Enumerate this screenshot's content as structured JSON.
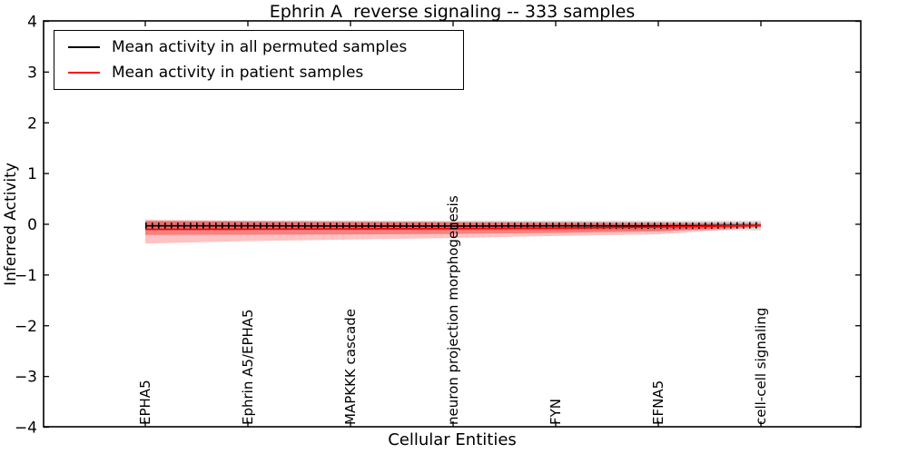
{
  "figure": {
    "title": "Ephrin A  reverse signaling -- 333 samples",
    "xlabel": "Cellular Entities",
    "ylabel": "Inferred Activity"
  },
  "chart_data": {
    "type": "line",
    "title": "Ephrin A  reverse signaling -- 333 samples",
    "xlabel": "Cellular Entities",
    "ylabel": "Inferred Activity",
    "ylim": [
      -4,
      4
    ],
    "yticks": [
      4,
      3,
      2,
      1,
      0,
      -1,
      -2,
      -3,
      -4
    ],
    "grid": false,
    "legend_position": "upper left",
    "categories": [
      "EPHA5",
      "Ephrin A5/EPHA5",
      "MAPKKK cascade",
      "neuron projection morphogenesis",
      "FYN",
      "EFNA5",
      "cell-cell signaling"
    ],
    "series": [
      {
        "name": "Mean activity in all permuted samples",
        "color": "#000000",
        "marker": "vertical-tick",
        "values": [
          -0.03,
          -0.03,
          -0.035,
          -0.035,
          -0.03,
          -0.03,
          -0.02
        ]
      },
      {
        "name": "Mean activity in patient samples",
        "color": "#ff0000",
        "marker": "none",
        "values": [
          -0.1,
          -0.095,
          -0.09,
          -0.085,
          -0.075,
          -0.055,
          -0.025
        ]
      }
    ],
    "bands": [
      {
        "name": "permuted-samples-range",
        "color": "rgba(125,125,125,0.28)",
        "top": [
          0.07,
          0.07,
          0.07,
          0.07,
          0.07,
          0.07,
          0.07
        ],
        "bottom": [
          -0.12,
          -0.12,
          -0.12,
          -0.12,
          -0.12,
          -0.12,
          -0.12
        ]
      },
      {
        "name": "patient-samples-outer-range",
        "color": "rgba(255,30,30,0.27)",
        "top": [
          0.09,
          0.07,
          0.06,
          0.05,
          0.045,
          0.04,
          0.03
        ],
        "bottom": [
          -0.38,
          -0.33,
          -0.3,
          -0.27,
          -0.23,
          -0.2,
          -0.06
        ]
      },
      {
        "name": "patient-samples-inner-range",
        "color": "rgba(235,30,30,0.40)",
        "top": [
          0.06,
          0.05,
          0.04,
          0.035,
          0.03,
          0.02,
          0.012
        ],
        "bottom": [
          -0.21,
          -0.205,
          -0.2,
          -0.19,
          -0.17,
          -0.14,
          -0.045
        ]
      }
    ]
  }
}
